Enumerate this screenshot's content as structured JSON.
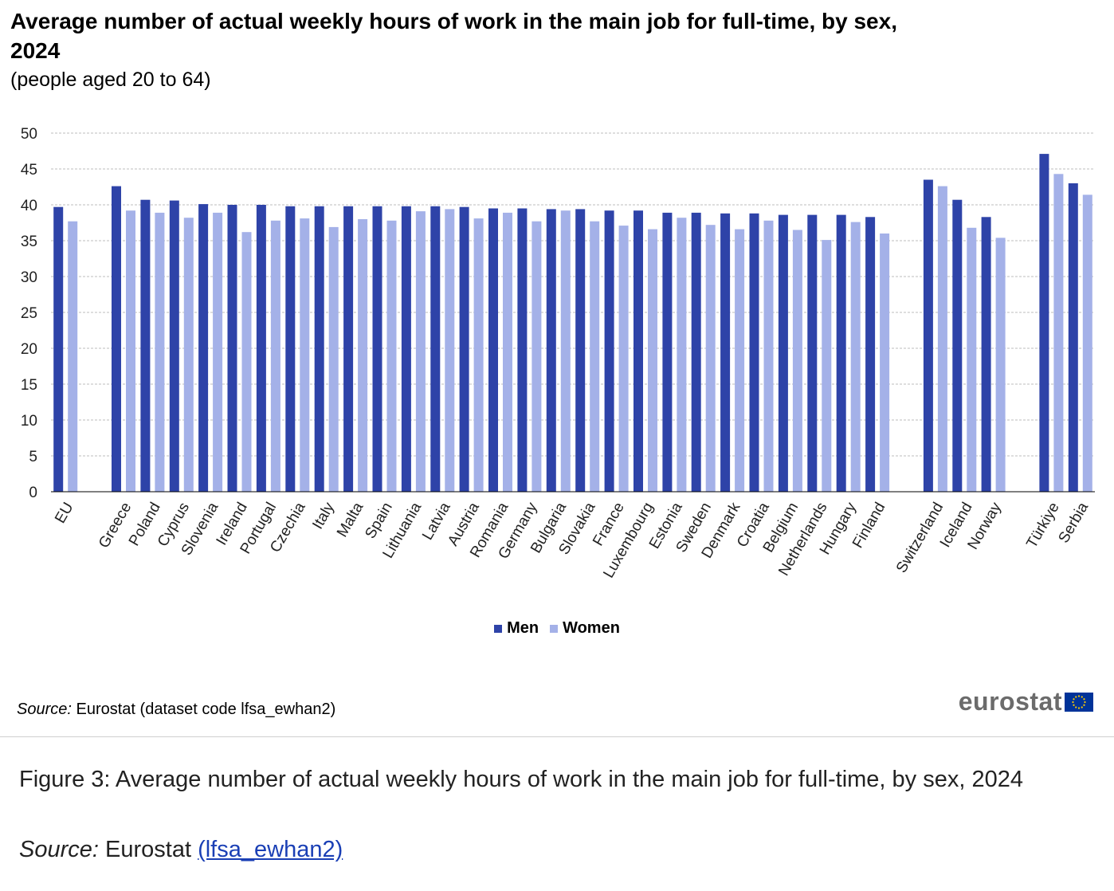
{
  "header": {
    "title": "Average number of actual weekly hours of work in the main job for full-time, by sex, 2024",
    "subtitle": "(people aged 20 to 64)"
  },
  "source": {
    "label": "Source:",
    "text": " Eurostat (dataset code lfsa_ewhan2)"
  },
  "logo": {
    "text": "eurostat"
  },
  "caption": {
    "text": "Figure 3: Average number of actual weekly hours of work in the main job for full-time, by sex, 2024",
    "source_label": "Source:",
    "source_text": " Eurostat ",
    "source_link": "(lfsa_ewhan2)"
  },
  "colors": {
    "men": "#2e43a8",
    "women": "#a4b1e8",
    "grid": "#bdbdbd",
    "axis": "#000000"
  },
  "chart_data": {
    "type": "bar",
    "title": "Average number of actual weekly hours of work in the main job for full-time, by sex, 2024",
    "subtitle": "(people aged 20 to 64)",
    "xlabel": "",
    "ylabel": "",
    "ylim": [
      0,
      50
    ],
    "yticks": [
      0,
      5,
      10,
      15,
      20,
      25,
      30,
      35,
      40,
      45,
      50
    ],
    "grid": true,
    "legend_position": "bottom-center",
    "categories": [
      "EU",
      "",
      "Greece",
      "Poland",
      "Cyprus",
      "Slovenia",
      "Ireland",
      "Portugal",
      "Czechia",
      "Italy",
      "Malta",
      "Spain",
      "Lithuania",
      "Latvia",
      "Austria",
      "Romania",
      "Germany",
      "Bulgaria",
      "Slovakia",
      "France",
      "Luxembourg",
      "Estonia",
      "Sweden",
      "Denmark",
      "Croatia",
      "Belgium",
      "Netherlands",
      "Hungary",
      "Finland",
      "",
      "Switzerland",
      "Iceland",
      "Norway",
      "",
      "Türkiye",
      "Serbia"
    ],
    "series": [
      {
        "name": "Men",
        "values": [
          39.7,
          null,
          42.6,
          40.7,
          40.6,
          40.1,
          40.0,
          40.0,
          39.8,
          39.8,
          39.8,
          39.8,
          39.8,
          39.8,
          39.7,
          39.5,
          39.5,
          39.4,
          39.4,
          39.2,
          39.2,
          38.9,
          38.9,
          38.8,
          38.8,
          38.6,
          38.6,
          38.6,
          38.3,
          null,
          43.5,
          40.7,
          38.3,
          null,
          47.1,
          43.0
        ]
      },
      {
        "name": "Women",
        "values": [
          37.7,
          null,
          39.2,
          38.9,
          38.2,
          38.9,
          36.2,
          37.8,
          38.1,
          36.9,
          38.0,
          37.8,
          39.1,
          39.4,
          38.1,
          38.9,
          37.7,
          39.2,
          37.7,
          37.1,
          36.6,
          38.2,
          37.2,
          36.6,
          37.8,
          36.5,
          35.1,
          37.6,
          36.0,
          null,
          42.6,
          36.8,
          35.4,
          null,
          44.3,
          41.4
        ]
      }
    ]
  }
}
